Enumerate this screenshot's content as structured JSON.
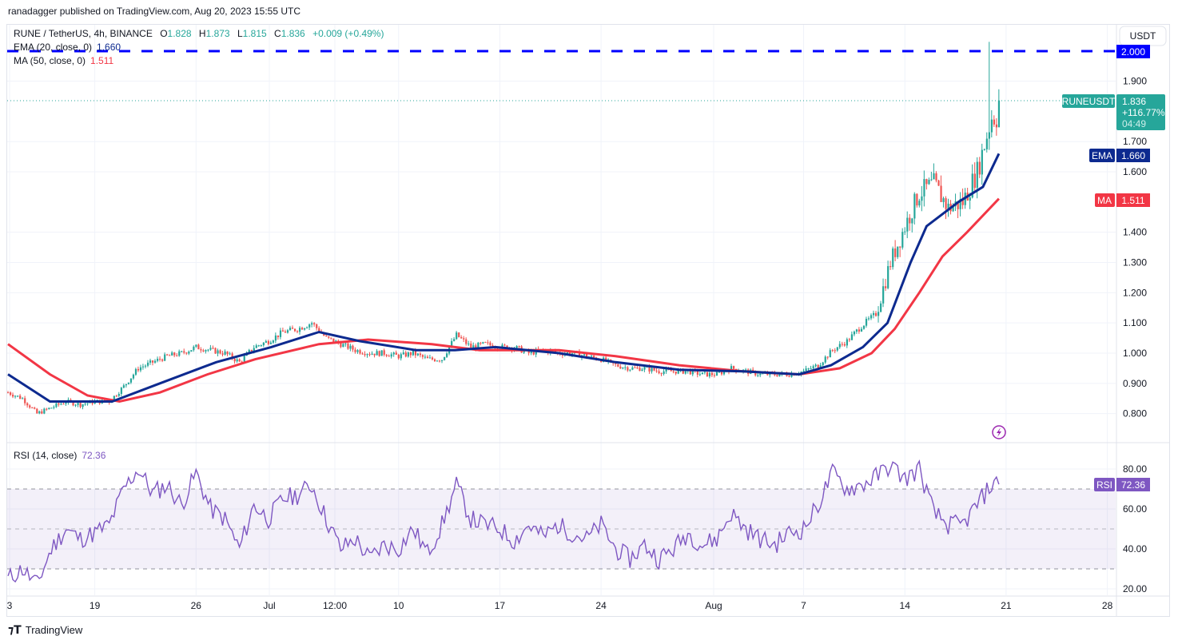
{
  "header": {
    "published": "ranadagger published on TradingView.com, Aug 20, 2023 15:55 UTC"
  },
  "legend": {
    "symbol": "RUNE / TetherUS, 4h, BINANCE",
    "o_label": "O",
    "o": "1.828",
    "h_label": "H",
    "h": "1.873",
    "l_label": "L",
    "l": "1.815",
    "c_label": "C",
    "c": "1.836",
    "change": "+0.009 (+0.49%)",
    "ema_label": "EMA (20, close, 0)",
    "ema_value": "1.660",
    "ma_label": "MA (50, close, 0)",
    "ma_value": "1.511",
    "rsi_label": "RSI (14, close)",
    "rsi_value": "72.36"
  },
  "axis": {
    "currency_button": "USDT",
    "price_ticks": [
      "1.900",
      "1.700",
      "1.600",
      "1.400",
      "1.300",
      "1.200",
      "1.100",
      "1.000",
      "0.900",
      "0.800"
    ],
    "rsi_ticks": [
      "80.00",
      "60.00",
      "40.00",
      "20.00"
    ],
    "time_ticks": [
      "3",
      "19",
      "26",
      "Jul",
      "12:00",
      "10",
      "17",
      "24",
      "Aug",
      "7",
      "14",
      "21",
      "28"
    ]
  },
  "badges": {
    "level": "2.000",
    "symbol": "RUNEUSDT",
    "price": "1.836",
    "percent": "+116.77%",
    "countdown": "04:49",
    "ema_tag": "EMA",
    "ema": "1.660",
    "ma_tag": "MA",
    "ma": "1.511",
    "rsi_tag": "RSI",
    "rsi": "72.36"
  },
  "colors": {
    "up": "#26a69a",
    "down": "#ef5350",
    "ema": "#0d2a8f",
    "ma": "#f23645",
    "rsi": "#7e57c2",
    "level": "#0000ff"
  },
  "logo": "TradingView",
  "chart_data": {
    "type": "candlestick",
    "title": "RUNE / TetherUS, 4h, BINANCE",
    "x_unit": "days since Jun 13, 2023",
    "ylim": [
      0.72,
      2.1
    ],
    "level_line": 2.0,
    "last_close": 1.836,
    "spike_high": 2.03,
    "daily_close": [
      0.87,
      0.85,
      0.8,
      0.82,
      0.84,
      0.83,
      0.84,
      0.84,
      0.89,
      0.95,
      0.97,
      0.99,
      1.0,
      1.02,
      1.01,
      1.0,
      0.97,
      1.02,
      1.04,
      1.07,
      1.08,
      1.1,
      1.05,
      1.03,
      1.01,
      1.0,
      1.0,
      0.99,
      1.0,
      0.98,
      0.98,
      1.06,
      1.02,
      1.03,
      1.02,
      1.02,
      1.0,
      1.01,
      1.0,
      1.0,
      0.99,
      0.98,
      0.96,
      0.95,
      0.95,
      0.94,
      0.94,
      0.94,
      0.93,
      0.93,
      0.95,
      0.94,
      0.93,
      0.93,
      0.93,
      0.94,
      0.96,
      1.01,
      1.04,
      1.09,
      1.13,
      1.3,
      1.42,
      1.53,
      1.56,
      1.48,
      1.5,
      1.6,
      1.78
    ],
    "ema20": [
      [
        0,
        0.93
      ],
      [
        2.9,
        0.84
      ],
      [
        7.2,
        0.84
      ],
      [
        10.5,
        0.9
      ],
      [
        14.4,
        0.97
      ],
      [
        18.2,
        1.02
      ],
      [
        21.5,
        1.07
      ],
      [
        24.3,
        1.04
      ],
      [
        28.2,
        1.01
      ],
      [
        30.9,
        1.01
      ],
      [
        33.7,
        1.02
      ],
      [
        38.1,
        1.0
      ],
      [
        42,
        0.97
      ],
      [
        46.4,
        0.945
      ],
      [
        50.8,
        0.94
      ],
      [
        54.7,
        0.93
      ],
      [
        56.9,
        0.96
      ],
      [
        59.1,
        1.02
      ],
      [
        60.8,
        1.1
      ],
      [
        62.4,
        1.3
      ],
      [
        63.5,
        1.42
      ],
      [
        65.7,
        1.5
      ],
      [
        67.4,
        1.55
      ],
      [
        68.5,
        1.66
      ]
    ],
    "ma50": [
      [
        0,
        1.03
      ],
      [
        2.9,
        0.93
      ],
      [
        5.5,
        0.86
      ],
      [
        7.7,
        0.84
      ],
      [
        10.5,
        0.87
      ],
      [
        13.8,
        0.93
      ],
      [
        17.1,
        0.98
      ],
      [
        21.5,
        1.03
      ],
      [
        24.9,
        1.045
      ],
      [
        29.3,
        1.03
      ],
      [
        32.6,
        1.01
      ],
      [
        38.1,
        1.01
      ],
      [
        42,
        0.99
      ],
      [
        46.4,
        0.96
      ],
      [
        50.8,
        0.94
      ],
      [
        54.7,
        0.93
      ],
      [
        57.5,
        0.95
      ],
      [
        59.7,
        1.0
      ],
      [
        61.3,
        1.08
      ],
      [
        63,
        1.2
      ],
      [
        64.6,
        1.32
      ],
      [
        66.3,
        1.4
      ],
      [
        68.5,
        1.511
      ]
    ],
    "rsi": {
      "period": 14,
      "ylim": [
        15,
        90
      ],
      "bands": [
        30,
        50,
        70
      ],
      "daily": [
        25,
        30,
        22,
        40,
        50,
        45,
        48,
        52,
        70,
        80,
        68,
        72,
        62,
        78,
        60,
        55,
        40,
        62,
        55,
        65,
        67,
        72,
        55,
        40,
        45,
        35,
        42,
        40,
        50,
        38,
        52,
        72,
        55,
        52,
        50,
        44,
        52,
        46,
        52,
        48,
        45,
        52,
        40,
        35,
        42,
        35,
        40,
        48,
        42,
        45,
        58,
        50,
        45,
        42,
        48,
        50,
        62,
        78,
        70,
        72,
        76,
        82,
        75,
        80,
        58,
        52,
        52,
        62,
        72.36
      ]
    }
  }
}
